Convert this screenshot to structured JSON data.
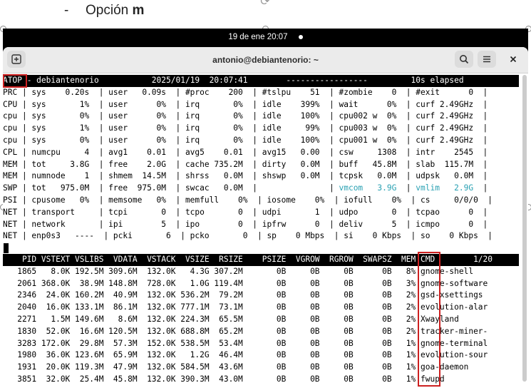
{
  "doc": {
    "bullet": "-",
    "heading_prefix": "Opción ",
    "heading_bold": "m"
  },
  "topbar": {
    "date": "19 de ene",
    "time": "20:07"
  },
  "window": {
    "title": "antonio@debiantenorio: ~"
  },
  "atop": {
    "tag": "ATOP",
    "header_rest": " - debiantenorio           2025/01/19  20:07:41        -----------------         10s elapsed",
    "sys_lines": [
      "PRC | sys    0.20s  | user   0.09s  | #proc    200  | #tslpu    51  | #zombie    0  | #exit      0  |",
      "CPU | sys       1%  | user      0%  | irq       0%  | idle    399%  | wait      0%  | curf 2.49GHz  |",
      "cpu | sys       0%  | user      0%  | irq       0%  | idle    100%  | cpu002 w  0%  | curf 2.49GHz  |",
      "cpu | sys       1%  | user      0%  | irq       0%  | idle     99%  | cpu003 w  0%  | curf 2.49GHz  |",
      "cpu | sys       0%  | user      0%  | irq       0%  | idle    100%  | cpu001 w  0%  | curf 2.49GHz  |",
      "CPL | numcpu     4  | avg1    0.01  | avg5    0.01  | avg15   0.00  | csw     1308  | intr    2545  |",
      "MEM | tot     3.8G  | free    2.0G  | cache 735.2M  | dirty   0.0M  | buff   45.8M  | slab  115.7M  |",
      "MEM | numnode    1  | shmem  14.5M  | shrss   0.0M  | shswp   0.0M  | tcpsk   0.0M  | udpsk   0.0M  |"
    ],
    "swp_pre": "SWP | tot   975.0M  | free  975.0M  | swcac   0.0M  |               | ",
    "swp_vmcom": "vmcom   3.9G",
    "swp_mid": "  | ",
    "swp_vmlim": "vmlim   2.9G",
    "swp_post": "  |",
    "tail_lines": [
      "PSI | cpusome   0%  | memsome   0%  | memfull    0%  | iosome    0%  | iofull    0%  | cs     0/0/0  |",
      "NET | transport     | tcpi       0  | tcpo       0  | udpi       1  | udpo       0  | tcpao      0  |",
      "NET | network       | ipi        5  | ipo        0  | ipfrw      0  | deliv      5  | icmpo      0  |",
      "NET | enp0s3   ----  | pcki       6  | pcko       0  | sp    0 Mbps  | si    0 Kbps  | so    0 Kbps  |"
    ],
    "proc_header": "    PID VSTEXT VSLIBS  VDATA  VSTACK  VSIZE  RSIZE    PSIZE  VGROW  RGROW  SWAPSZ  MEM CMD        1/20",
    "processes": [
      "   1865   8.0K 192.5M 309.6M  132.0K   4.3G 307.2M       0B     0B     0B      0B   8% gnome-shell",
      "   2061 368.0K  38.9M 148.8M  728.0K   1.0G 119.4M       0B     0B     0B      0B   3% gnome-software",
      "   2346  24.0K 160.2M  40.9M  132.0K 536.2M  79.2M       0B     0B     0B      0B   2% gsd-xsettings",
      "   2040  16.0K 133.1M  86.1M  132.0K 777.1M  73.1M       0B     0B     0B      0B   2% evolution-alar",
      "   2271   1.5M 149.6M   8.6M  132.0K 224.3M  65.5M       0B     0B     0B      0B   2% Xwayland",
      "   1830  52.0K  16.6M 120.5M  132.0K 688.8M  65.2M       0B     0B     0B      0B   2% tracker-miner-",
      "   3283 172.0K  29.8M  57.3M  152.0K 538.5M  53.4M       0B     0B     0B      0B   1% gnome-terminal",
      "   1980  36.0K 123.6M  65.9M  132.0K   1.2G  46.4M       0B     0B     0B      0B   1% evolution-sour",
      "   1931  20.0K 119.3M  47.9M  132.0K 584.5M  43.6M       0B     0B     0B      0B   1% goa-daemon",
      "   3851  32.0K  25.4M  45.8M  132.0K 390.3M  43.0M       0B     0B     0B      0B   1% fwupd"
    ]
  },
  "colors": {
    "highlight": "#cc2020",
    "teal": "#2aa1b3"
  }
}
